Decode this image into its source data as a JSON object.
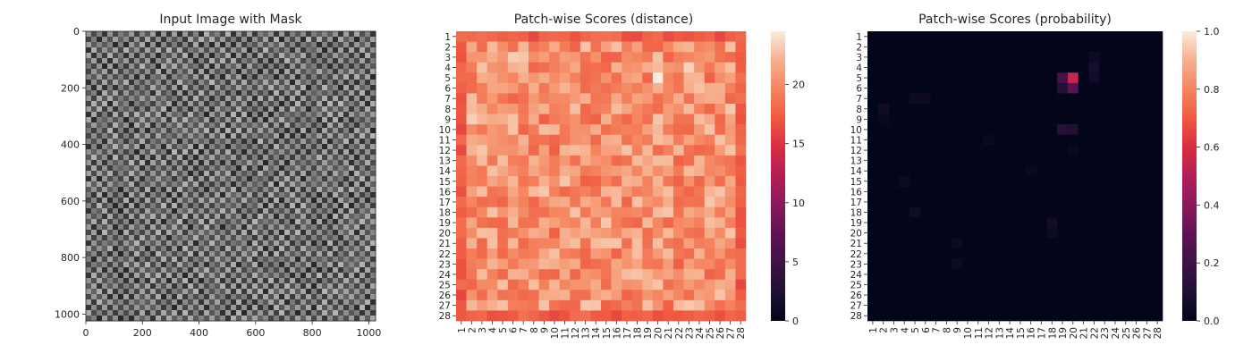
{
  "chart_data": [
    {
      "type": "image",
      "title": "Input Image with Mask",
      "xlim": [
        0,
        1024
      ],
      "ylim": [
        1024,
        0
      ],
      "xticks": [
        0,
        200,
        400,
        600,
        800,
        1000
      ],
      "yticks": [
        0,
        200,
        400,
        600,
        800,
        1000
      ],
      "texture": "woven-fabric-grayscale"
    },
    {
      "type": "heatmap",
      "title": "Patch-wise Scores (distance)",
      "rows": 28,
      "cols": 28,
      "row_labels": [
        "1",
        "2",
        "3",
        "4",
        "5",
        "6",
        "7",
        "8",
        "9",
        "10",
        "11",
        "12",
        "13",
        "14",
        "15",
        "16",
        "17",
        "18",
        "19",
        "20",
        "21",
        "22",
        "23",
        "24",
        "25",
        "26",
        "27",
        "28"
      ],
      "col_labels": [
        "1",
        "2",
        "3",
        "4",
        "5",
        "6",
        "7",
        "8",
        "9",
        "10",
        "11",
        "12",
        "13",
        "14",
        "15",
        "16",
        "17",
        "18",
        "19",
        "20",
        "21",
        "22",
        "23",
        "24",
        "25",
        "26",
        "27",
        "28"
      ],
      "vmin": 0,
      "vmax": 24.5,
      "colorbar_ticks": [
        0,
        5,
        10,
        15,
        20
      ],
      "colormap": "rocket",
      "value_ranges": {
        "edges": [
          16,
          18.5
        ],
        "interior": [
          17.5,
          23
        ],
        "max": 24.5
      },
      "hotspots": [
        {
          "row": 3,
          "col": 6,
          "value": 23.2
        },
        {
          "row": 4,
          "col": 3,
          "value": 22.8
        },
        {
          "row": 5,
          "col": 20,
          "value": 24.5
        },
        {
          "row": 4,
          "col": 23,
          "value": 23.5
        },
        {
          "row": 9,
          "col": 2,
          "value": 23.3
        },
        {
          "row": 10,
          "col": 20,
          "value": 22.4
        },
        {
          "row": 16,
          "col": 3,
          "value": 22.6
        },
        {
          "row": 19,
          "col": 19,
          "value": 22.4
        },
        {
          "row": 26,
          "col": 26,
          "value": 22.9
        },
        {
          "row": 23,
          "col": 9,
          "value": 22.3
        }
      ]
    },
    {
      "type": "heatmap",
      "title": "Patch-wise Scores (probability)",
      "rows": 28,
      "cols": 28,
      "row_labels": [
        "1",
        "2",
        "3",
        "4",
        "5",
        "6",
        "7",
        "8",
        "9",
        "10",
        "11",
        "12",
        "13",
        "14",
        "15",
        "16",
        "17",
        "18",
        "19",
        "20",
        "21",
        "22",
        "23",
        "24",
        "25",
        "26",
        "27",
        "28"
      ],
      "col_labels": [
        "1",
        "2",
        "3",
        "4",
        "5",
        "6",
        "7",
        "8",
        "9",
        "10",
        "11",
        "12",
        "13",
        "14",
        "15",
        "16",
        "17",
        "18",
        "19",
        "20",
        "21",
        "22",
        "23",
        "24",
        "25",
        "26",
        "27",
        "28"
      ],
      "vmin": 0,
      "vmax": 1.0,
      "colorbar_ticks": [
        "0.0",
        "0.2",
        "0.4",
        "0.6",
        "0.8",
        "1.0"
      ],
      "colormap": "rocket",
      "background_value": 0.0,
      "hotspots": [
        {
          "row": 5,
          "col": 20,
          "value": 0.55
        },
        {
          "row": 5,
          "col": 19,
          "value": 0.22
        },
        {
          "row": 6,
          "col": 20,
          "value": 0.28
        },
        {
          "row": 6,
          "col": 19,
          "value": 0.12
        },
        {
          "row": 10,
          "col": 19,
          "value": 0.12
        },
        {
          "row": 10,
          "col": 20,
          "value": 0.1
        },
        {
          "row": 4,
          "col": 22,
          "value": 0.07
        },
        {
          "row": 5,
          "col": 22,
          "value": 0.05
        },
        {
          "row": 3,
          "col": 22,
          "value": 0.04
        },
        {
          "row": 8,
          "col": 2,
          "value": 0.05
        },
        {
          "row": 7,
          "col": 5,
          "value": 0.04
        },
        {
          "row": 7,
          "col": 6,
          "value": 0.04
        },
        {
          "row": 9,
          "col": 2,
          "value": 0.03
        },
        {
          "row": 15,
          "col": 4,
          "value": 0.04
        },
        {
          "row": 18,
          "col": 5,
          "value": 0.05
        },
        {
          "row": 19,
          "col": 18,
          "value": 0.06
        },
        {
          "row": 20,
          "col": 18,
          "value": 0.04
        },
        {
          "row": 21,
          "col": 9,
          "value": 0.04
        },
        {
          "row": 23,
          "col": 9,
          "value": 0.04
        },
        {
          "row": 11,
          "col": 12,
          "value": 0.03
        },
        {
          "row": 12,
          "col": 20,
          "value": 0.03
        },
        {
          "row": 14,
          "col": 16,
          "value": 0.03
        }
      ]
    }
  ]
}
